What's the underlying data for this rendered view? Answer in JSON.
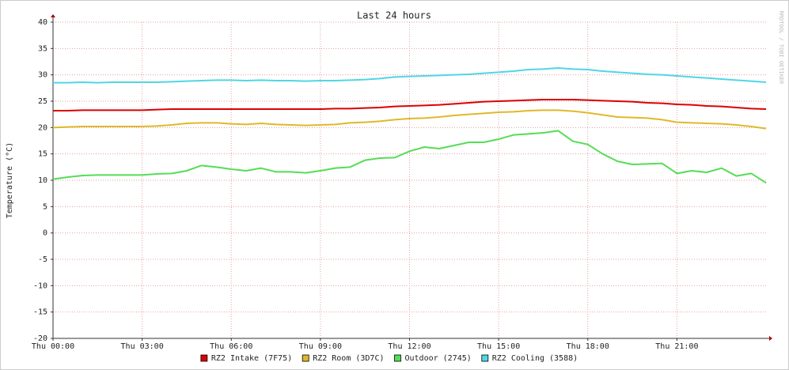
{
  "chart_data": {
    "type": "line",
    "title": "Last 24 hours",
    "y_label": "Temperature (°C)",
    "side_text": "RRDTOOL / TOBI OETIKER",
    "x": [
      0,
      0.5,
      1,
      1.5,
      2,
      2.5,
      3,
      3.5,
      4,
      4.5,
      5,
      5.5,
      6,
      6.5,
      7,
      7.5,
      8,
      8.5,
      9,
      9.5,
      10,
      10.5,
      11,
      11.5,
      12,
      12.5,
      13,
      13.5,
      14,
      14.5,
      15,
      15.5,
      16,
      16.5,
      17,
      17.5,
      18,
      18.5,
      19,
      19.5,
      20,
      20.5,
      21,
      21.5,
      22,
      22.5,
      23,
      23.5,
      24
    ],
    "xlim": [
      0,
      24
    ],
    "xticks": [
      {
        "value": 0,
        "label": "Thu 00:00"
      },
      {
        "value": 3,
        "label": "Thu 03:00"
      },
      {
        "value": 6,
        "label": "Thu 06:00"
      },
      {
        "value": 9,
        "label": "Thu 09:00"
      },
      {
        "value": 12,
        "label": "Thu 12:00"
      },
      {
        "value": 15,
        "label": "Thu 15:00"
      },
      {
        "value": 18,
        "label": "Thu 18:00"
      },
      {
        "value": 21,
        "label": "Thu 21:00"
      }
    ],
    "ylim": [
      -20,
      40
    ],
    "yticks": [
      -20,
      -15,
      -10,
      -5,
      0,
      5,
      10,
      15,
      20,
      25,
      30,
      35,
      40
    ],
    "grid": true,
    "legend": "bottom",
    "series": [
      {
        "name": "RZ2 Intake (7F75)",
        "color": "#dd0000",
        "values": [
          23.2,
          23.2,
          23.3,
          23.3,
          23.3,
          23.3,
          23.3,
          23.4,
          23.5,
          23.5,
          23.5,
          23.5,
          23.5,
          23.5,
          23.5,
          23.5,
          23.5,
          23.5,
          23.5,
          23.6,
          23.6,
          23.7,
          23.8,
          24,
          24.1,
          24.2,
          24.3,
          24.5,
          24.7,
          24.9,
          25,
          25.1,
          25.2,
          25.3,
          25.3,
          25.3,
          25.2,
          25.1,
          25,
          24.9,
          24.7,
          24.6,
          24.4,
          24.3,
          24.1,
          24,
          23.8,
          23.6,
          23.5
        ]
      },
      {
        "name": "RZ2 Room (3D7C)",
        "color": "#e0b82b",
        "values": [
          20,
          20.1,
          20.2,
          20.2,
          20.2,
          20.2,
          20.2,
          20.3,
          20.5,
          20.8,
          20.9,
          20.9,
          20.7,
          20.6,
          20.8,
          20.6,
          20.5,
          20.4,
          20.5,
          20.6,
          20.9,
          21,
          21.2,
          21.5,
          21.7,
          21.8,
          22,
          22.3,
          22.5,
          22.7,
          22.9,
          23,
          23.2,
          23.3,
          23.3,
          23.1,
          22.8,
          22.4,
          22,
          21.9,
          21.8,
          21.5,
          21,
          20.9,
          20.8,
          20.7,
          20.5,
          20.2,
          19.8
        ]
      },
      {
        "name": "Outdoor (2745)",
        "color": "#55dd55",
        "values": [
          10.2,
          10.6,
          10.9,
          11,
          11,
          11,
          11,
          11.2,
          11.3,
          11.8,
          12.8,
          12.5,
          12.1,
          11.8,
          12.3,
          11.6,
          11.6,
          11.4,
          11.8,
          12.3,
          12.5,
          13.8,
          14.2,
          14.3,
          15.5,
          16.3,
          16,
          16.6,
          17.2,
          17.2,
          17.8,
          18.6,
          18.8,
          19,
          19.4,
          17.4,
          16.8,
          15,
          13.6,
          13,
          13.1,
          13.2,
          11.3,
          11.8,
          11.5,
          12.3,
          10.8,
          11.3,
          9.5
        ]
      },
      {
        "name": "RZ2 Cooling (3588)",
        "color": "#4fd6e6",
        "values": [
          28.5,
          28.5,
          28.6,
          28.5,
          28.6,
          28.6,
          28.6,
          28.6,
          28.7,
          28.8,
          28.9,
          29,
          29,
          28.9,
          29,
          28.9,
          28.9,
          28.8,
          28.9,
          28.9,
          29,
          29.1,
          29.3,
          29.6,
          29.7,
          29.8,
          29.9,
          30,
          30.1,
          30.3,
          30.5,
          30.7,
          31,
          31.1,
          31.3,
          31.1,
          31,
          30.7,
          30.5,
          30.3,
          30.1,
          30,
          29.8,
          29.6,
          29.4,
          29.2,
          29,
          28.8,
          28.6
        ]
      }
    ]
  }
}
